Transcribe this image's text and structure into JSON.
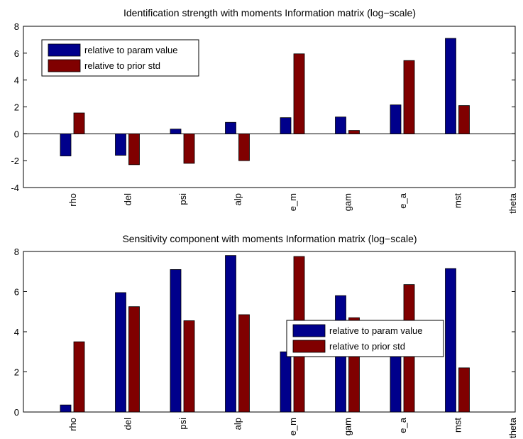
{
  "colors": {
    "param_value": "#00008B",
    "prior_std": "#800000"
  },
  "chart_data": [
    {
      "type": "bar",
      "title": "Identification strength with moments Information matrix (log−scale)",
      "categories": [
        "rho",
        "del",
        "psi",
        "alp",
        "e_m",
        "gam",
        "e_a",
        "mst",
        "theta"
      ],
      "series": [
        {
          "name": "relative to param value",
          "values": [
            -1.65,
            -1.6,
            0.35,
            0.85,
            1.2,
            1.25,
            2.15,
            7.1,
            null
          ]
        },
        {
          "name": "relative to prior std",
          "values": [
            1.55,
            -2.3,
            -2.2,
            -2.0,
            5.95,
            0.25,
            5.45,
            2.1,
            null
          ]
        }
      ],
      "ylim": [
        -4,
        8
      ],
      "yticks": [
        -4,
        -2,
        0,
        2,
        4,
        6,
        8
      ],
      "legend": "top-left",
      "grid": false
    },
    {
      "type": "bar",
      "title": "Sensitivity component with moments Information matrix (log−scale)",
      "categories": [
        "rho",
        "del",
        "psi",
        "alp",
        "e_m",
        "gam",
        "e_a",
        "mst",
        "theta"
      ],
      "series": [
        {
          "name": "relative to param value",
          "values": [
            0.35,
            5.95,
            7.1,
            7.8,
            3.0,
            5.8,
            3.3,
            7.15,
            null
          ]
        },
        {
          "name": "relative to prior std",
          "values": [
            3.5,
            5.25,
            4.55,
            4.85,
            7.75,
            4.7,
            6.35,
            2.2,
            null
          ]
        }
      ],
      "ylim": [
        0,
        8
      ],
      "yticks": [
        0,
        2,
        4,
        6,
        8
      ],
      "legend": "middle-right",
      "grid": false
    }
  ]
}
